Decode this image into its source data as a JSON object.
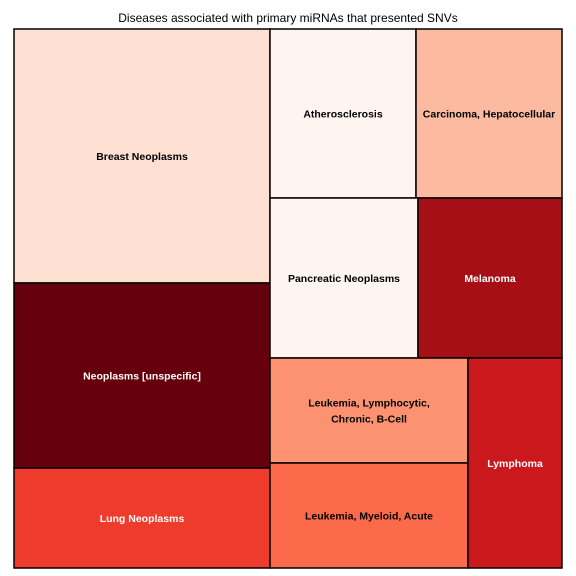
{
  "chart_data": {
    "type": "treemap",
    "title": "Diseases associated with primary miRNAs that presented SNVs",
    "cells": [
      {
        "label": "Breast Neoplasms",
        "lines": [
          "Breast Neoplasms"
        ],
        "color": "#fde0d2",
        "text_color": "#000000"
      },
      {
        "label": "Neoplasms [unspecific]",
        "lines": [
          "Neoplasms [unspecific]"
        ],
        "color": "#67000d",
        "text_color": "#ffffff"
      },
      {
        "label": "Lung Neoplasms",
        "lines": [
          "Lung Neoplasms"
        ],
        "color": "#ef3b2c",
        "text_color": "#ffffff"
      },
      {
        "label": "Atherosclerosis",
        "lines": [
          "Atherosclerosis"
        ],
        "color": "#fff5f0",
        "text_color": "#000000"
      },
      {
        "label": "Carcinoma, Hepatocellular",
        "lines": [
          "Carcinoma, Hepatocellular"
        ],
        "color": "#fcbba1",
        "text_color": "#000000"
      },
      {
        "label": "Pancreatic Neoplasms",
        "lines": [
          "Pancreatic Neoplasms"
        ],
        "color": "#fff5f0",
        "text_color": "#000000"
      },
      {
        "label": "Melanoma",
        "lines": [
          "Melanoma"
        ],
        "color": "#a50f15",
        "text_color": "#ffffff"
      },
      {
        "label": "Leukemia, Lymphocytic, Chronic, B-Cell",
        "lines": [
          "Leukemia, Lymphocytic,",
          "Chronic, B-Cell"
        ],
        "color": "#fc9272",
        "text_color": "#000000"
      },
      {
        "label": "Leukemia, Myeloid, Acute",
        "lines": [
          "Leukemia, Myeloid, Acute"
        ],
        "color": "#fb6a4a",
        "text_color": "#000000"
      },
      {
        "label": "Lymphoma",
        "lines": [
          "Lymphoma"
        ],
        "color": "#cb181d",
        "text_color": "#ffffff"
      }
    ]
  }
}
